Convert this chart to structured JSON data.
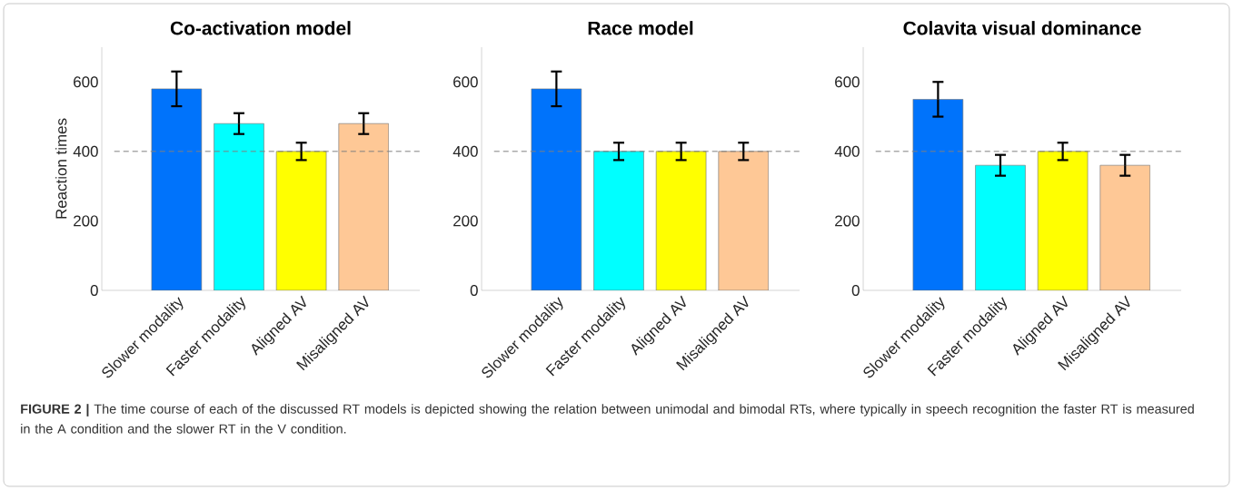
{
  "chart_data": [
    {
      "type": "bar",
      "title": "Co-activation model",
      "ylabel": "Reaction times",
      "categories": [
        "Slower modality",
        "Faster modality",
        "Aligned AV",
        "Misaligned AV"
      ],
      "values": [
        580,
        480,
        400,
        480
      ],
      "errors": [
        50,
        30,
        25,
        30
      ],
      "colors": [
        "#0073fb",
        "#00ffff",
        "#ffff00",
        "#fec896"
      ],
      "ylim": [
        0,
        700
      ],
      "yticks": [
        0,
        200,
        400,
        600
      ],
      "ref_lines": [
        {
          "axis": "y",
          "value": 400,
          "color": "#808080",
          "line_style": "dashed"
        }
      ],
      "annotations": [
        "**FIGURE 2 |** The time course of each of the discussed RT models is depicted showing the relation between unimodal and bimodal RTs, where typically in speech recognition the faster RT is measured in the A condition and the slower RT in the V condition."
      ]
    },
    {
      "type": "bar",
      "title": "Race model",
      "categories": [
        "Slower modality",
        "Faster modality",
        "Aligned AV",
        "Misaligned AV"
      ],
      "values": [
        580,
        400,
        400,
        400
      ],
      "errors": [
        50,
        25,
        25,
        25
      ],
      "colors": [
        "#0073fb",
        "#00ffff",
        "#ffff00",
        "#fec896"
      ],
      "ylim": [
        0,
        700
      ],
      "yticks": [
        0,
        200,
        400,
        600
      ],
      "ref_lines": [
        {
          "axis": "y",
          "value": 400,
          "color": "#808080",
          "line_style": "dashed"
        }
      ]
    },
    {
      "type": "bar",
      "title": "Colavita visual dominance",
      "categories": [
        "Slower modality",
        "Faster modality",
        "Aligned AV",
        "Misaligned AV"
      ],
      "values": [
        550,
        360,
        400,
        360
      ],
      "errors": [
        50,
        30,
        25,
        30
      ],
      "colors": [
        "#0073fb",
        "#00ffff",
        "#ffff00",
        "#fec896"
      ],
      "ylim": [
        0,
        700
      ],
      "yticks": [
        0,
        200,
        400,
        600
      ],
      "ref_lines": [
        {
          "axis": "y",
          "value": 400,
          "color": "#808080",
          "line_style": "dashed"
        }
      ]
    }
  ]
}
